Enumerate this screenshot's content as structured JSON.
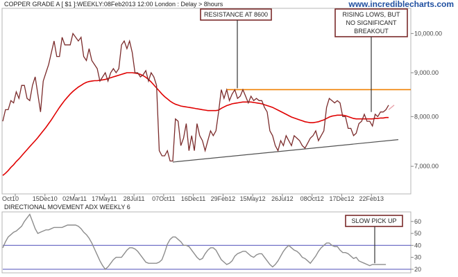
{
  "header": {
    "title": "COPPER GRADE A [ $1 ]:WEEKLY:08Feb2013 12:00 London : Delay > 8hours",
    "watermark": "www.incrediblecharts.com"
  },
  "chart_data": [
    {
      "type": "line",
      "title": "COPPER GRADE A [ $1 ]:WEEKLY:08Feb2013 12:00 London : Delay > 8hours",
      "xlabel": "",
      "ylabel": "",
      "x_tick_labels": [
        "Oct10",
        "15Dec10",
        "02Mar11",
        "17May11",
        "28Jul11",
        "07Oct11",
        "16Dec11",
        "29Feb12",
        "15May12",
        "26Jul12",
        "08Oct12",
        "17Dec12",
        "22Feb13"
      ],
      "y_tick_labels": [
        "7,000.00",
        "8,000.00",
        "9,000.00",
        "10,000.00"
      ],
      "y_ticks": [
        7000,
        8000,
        9000,
        10000
      ],
      "y_scale": "log",
      "ylim": [
        6500,
        10700
      ],
      "grid": false,
      "series": [
        {
          "color": "#7a2a2a",
          "values": [
            7900,
            8150,
            8150,
            8350,
            8300,
            8550,
            8400,
            8700,
            8700,
            8400,
            8350,
            8700,
            8900,
            8500,
            8100,
            8800,
            9000,
            9200,
            9500,
            9800,
            9400,
            9400,
            9900,
            9700,
            9700,
            9700,
            10000,
            9900,
            9800,
            9900,
            9400,
            9300,
            9600,
            9300,
            9200,
            9100,
            8800,
            8900,
            9000,
            8800,
            9000,
            9100,
            9000,
            9100,
            9700,
            9800,
            9600,
            9800,
            9500,
            9000,
            9000,
            8900,
            8950,
            9050,
            8800,
            9000,
            8900,
            8700,
            7300,
            7200,
            7200,
            7300,
            7100,
            7100,
            7950,
            7900,
            7400,
            7550,
            7850,
            7300,
            7600,
            7300,
            7850,
            7600,
            7500,
            7300,
            7500,
            7700,
            7600,
            7700,
            8100,
            8600,
            8400,
            8600,
            8350,
            8500,
            8600,
            8400,
            8450,
            8600,
            8450,
            8300,
            8450,
            8350,
            8400,
            8350,
            8350,
            8200,
            8100,
            7700,
            7600,
            7400,
            7300,
            7500,
            7400,
            7600,
            7500,
            7400,
            7600,
            7550,
            7500,
            7400,
            7350,
            7450,
            7550,
            7600,
            7700,
            7500,
            7600,
            7700,
            8200,
            8400,
            8350,
            8300,
            8350,
            8300,
            8000,
            8000,
            7750,
            7750,
            7600,
            7650,
            7850,
            7900,
            8050,
            7900,
            7900,
            7800,
            8050,
            8000,
            8100,
            8100,
            8150,
            8250
          ]
        },
        {
          "color": "#e00000",
          "values": [
            6830,
            6870,
            6920,
            6980,
            7030,
            7090,
            7140,
            7200,
            7260,
            7320,
            7380,
            7440,
            7500,
            7560,
            7630,
            7700,
            7770,
            7850,
            7930,
            8020,
            8110,
            8200,
            8280,
            8360,
            8430,
            8500,
            8560,
            8610,
            8660,
            8700,
            8740,
            8770,
            8790,
            8800,
            8810,
            8810,
            8820,
            8830,
            8840,
            8860,
            8880,
            8900,
            8920,
            8940,
            8960,
            8980,
            9000,
            9000,
            9000,
            8990,
            8980,
            8960,
            8930,
            8890,
            8840,
            8780,
            8710,
            8640,
            8570,
            8500,
            8440,
            8390,
            8340,
            8300,
            8270,
            8250,
            8230,
            8220,
            8210,
            8200,
            8190,
            8180,
            8170,
            8160,
            8150,
            8140,
            8130,
            8130,
            8130,
            8130,
            8140,
            8180,
            8210,
            8240,
            8260,
            8280,
            8290,
            8300,
            8310,
            8320,
            8320,
            8320,
            8320,
            8310,
            8300,
            8290,
            8280,
            8260,
            8240,
            8220,
            8200,
            8170,
            8140,
            8110,
            8080,
            8050,
            8020,
            7990,
            7970,
            7950,
            7930,
            7910,
            7890,
            7880,
            7870,
            7870,
            7880,
            7890,
            7910,
            7930,
            7960,
            7990,
            8010,
            8020,
            8030,
            8030,
            8030,
            8020,
            8000,
            7980,
            7960,
            7950,
            7950,
            7950,
            7950,
            7950,
            7950,
            7950,
            7960,
            7960,
            7970,
            7970,
            7980,
            7980
          ]
        },
        {
          "color": "#e8a0a8",
          "values": [
            8150,
            8250
          ]
        }
      ],
      "overlays": [
        {
          "kind": "horizontal_line",
          "color": "#f08000",
          "value": 8600
        },
        {
          "kind": "trend_line",
          "color": "#505050",
          "from_value": 7080,
          "to_value": 7520
        }
      ],
      "annotations": [
        {
          "text": [
            "RESISTANCE AT 8600"
          ]
        },
        {
          "text": [
            "RISING LOWS, BUT",
            "NO SIGNIFICANT",
            "BREAKOUT"
          ]
        }
      ]
    },
    {
      "type": "line",
      "title": "DIRECTIONAL MOVEMENT ADX WEEKLY 6",
      "xlabel": "",
      "ylabel": "",
      "y_tick_labels": [
        "20",
        "30",
        "40",
        "50",
        "60"
      ],
      "y_ticks": [
        20,
        30,
        40,
        50,
        60
      ],
      "ylim": [
        17,
        68
      ],
      "grid": false,
      "series": [
        {
          "color": "#8c8c8c",
          "values": [
            38,
            43,
            47,
            49,
            51,
            52,
            54,
            56,
            60,
            63,
            66,
            60,
            54,
            50,
            51,
            52,
            53,
            53,
            54,
            55,
            55,
            55,
            55,
            56,
            57,
            57,
            57,
            57,
            56,
            54,
            51,
            49,
            46,
            42,
            37,
            32,
            27,
            23,
            20,
            22,
            25,
            28,
            30,
            30,
            30,
            33,
            36,
            38,
            38,
            37,
            35,
            32,
            29,
            26,
            25,
            25,
            25,
            25,
            26,
            28,
            34,
            41,
            45,
            47,
            47,
            45,
            43,
            40,
            40,
            39,
            36,
            33,
            30,
            28,
            29,
            33,
            36,
            38,
            38,
            36,
            32,
            28,
            26,
            24,
            25,
            27,
            31,
            33,
            34,
            35,
            35,
            33,
            31,
            30,
            32,
            33,
            33,
            30,
            27,
            24,
            22,
            24,
            27,
            31,
            35,
            38,
            40,
            38,
            36,
            35,
            33,
            30,
            29,
            27,
            25,
            28,
            31,
            35,
            38,
            40,
            42,
            42,
            40,
            39,
            39,
            36,
            34,
            34,
            33,
            31,
            29,
            30,
            27,
            26,
            25,
            24,
            23,
            24,
            24,
            24,
            24,
            24,
            24
          ]
        }
      ],
      "overlays": [
        {
          "kind": "horizontal_line",
          "color": "#6060c0",
          "value": 40
        },
        {
          "kind": "horizontal_line",
          "color": "#6060c0",
          "value": 20
        }
      ],
      "annotations": [
        {
          "text": [
            "SLOW PICK UP"
          ]
        }
      ]
    }
  ]
}
